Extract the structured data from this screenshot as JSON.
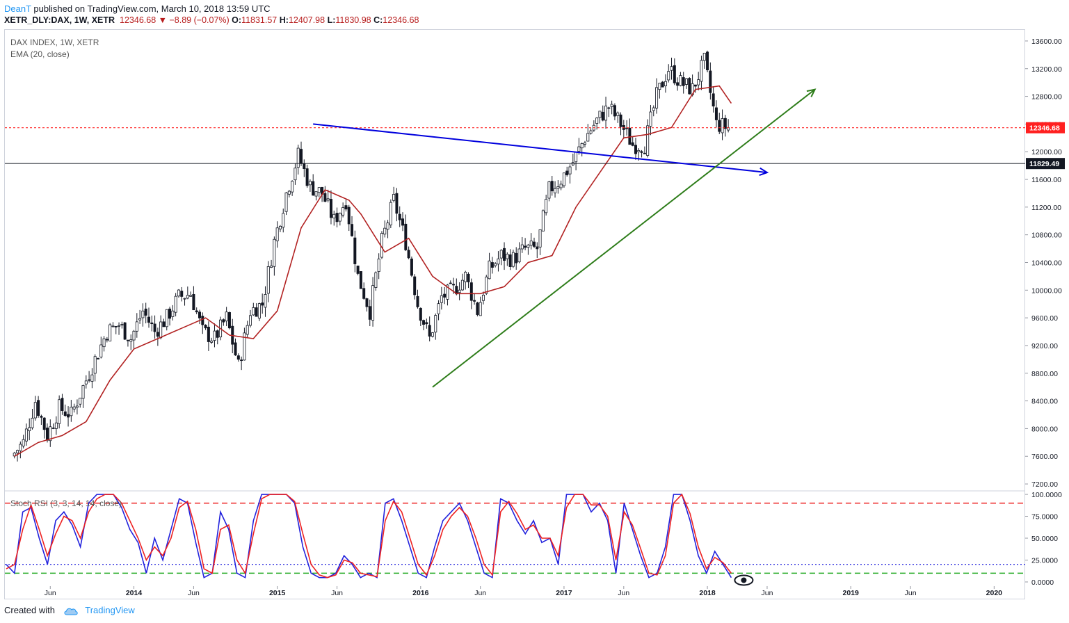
{
  "header": {
    "author": "DeanT",
    "published": "published on TradingView.com, March 10, 2018 13:59 UTC",
    "symbol": "XETR_DLY:DAX, 1W, XETR",
    "last": "12346.68",
    "change": "−8.89 (−0.07%)",
    "o_label": "O:",
    "o_value": "11831.57",
    "h_label": "H:",
    "h_value": "12407.98",
    "l_label": "L:",
    "l_value": "11830.98",
    "c_label": "C:",
    "c_value": "12346.68"
  },
  "legend": {
    "line1": "DAX INDEX, 1W, XETR",
    "line2": "EMA (20, close)",
    "stoch": "Stoch RSI (3, 3, 14, 14, close)"
  },
  "price_tags": {
    "current": "12346.68",
    "support": "11829.49"
  },
  "footer": {
    "created_with": "Created with",
    "brand": "TradingView"
  },
  "colors": {
    "candle": "#131722",
    "ema": "#b22222",
    "blue_line": "#0000dd",
    "green_line": "#2e7d1a",
    "current_price": "#ff2020",
    "stoch_k": "#2222dd",
    "stoch_d": "#ee2222",
    "stoch_upper": "#ee2222",
    "stoch_mid": "#2222dd",
    "stoch_lower": "#22aa22"
  },
  "chart_data": [
    {
      "type": "candlestick",
      "title": "DAX INDEX, 1W, XETR",
      "y_ticks": [
        7200,
        7600,
        8000,
        8400,
        8800,
        9200,
        9600,
        10000,
        10400,
        10800,
        11200,
        11600,
        12000,
        12400,
        12800,
        13200,
        13600
      ],
      "y_tick_labels": [
        "7200.00",
        "7600.00",
        "8000.00",
        "8400.00",
        "8800.00",
        "9200.00",
        "9600.00",
        "10000.00",
        "10400.00",
        "10800.00",
        "11200.00",
        "11600.00",
        "12000.00",
        "12400.00",
        "12800.00",
        "13200.00",
        "13600.00"
      ],
      "ylim": [
        7100,
        13750
      ],
      "x_tick_labels": [
        "Jun",
        "2014",
        "Jun",
        "2015",
        "Jun",
        "2016",
        "Jun",
        "2017",
        "Jun",
        "2018",
        "Jun",
        "2019",
        "Jun",
        "2020"
      ],
      "x_tick_bold": [
        false,
        true,
        false,
        true,
        false,
        true,
        false,
        true,
        false,
        true,
        false,
        true,
        false,
        true
      ],
      "x_range": [
        "2013-03",
        "2020-03"
      ],
      "close_series": [
        {
          "x": "2013-03",
          "y": 7600
        },
        {
          "x": "2013-04",
          "y": 7800
        },
        {
          "x": "2013-05",
          "y": 8400
        },
        {
          "x": "2013-06",
          "y": 7900
        },
        {
          "x": "2013-07",
          "y": 8300
        },
        {
          "x": "2013-08",
          "y": 8200
        },
        {
          "x": "2013-09",
          "y": 8600
        },
        {
          "x": "2013-10",
          "y": 9000
        },
        {
          "x": "2013-11",
          "y": 9400
        },
        {
          "x": "2013-12",
          "y": 9500
        },
        {
          "x": "2014-01",
          "y": 9300
        },
        {
          "x": "2014-02",
          "y": 9700
        },
        {
          "x": "2014-03",
          "y": 9400
        },
        {
          "x": "2014-04",
          "y": 9600
        },
        {
          "x": "2014-05",
          "y": 9900
        },
        {
          "x": "2014-06",
          "y": 9950
        },
        {
          "x": "2014-07",
          "y": 9400
        },
        {
          "x": "2014-08",
          "y": 9300
        },
        {
          "x": "2014-09",
          "y": 9600
        },
        {
          "x": "2014-10",
          "y": 8900
        },
        {
          "x": "2014-11",
          "y": 9700
        },
        {
          "x": "2014-12",
          "y": 9800
        },
        {
          "x": "2015-01",
          "y": 10700
        },
        {
          "x": "2015-02",
          "y": 11400
        },
        {
          "x": "2015-03",
          "y": 11950
        },
        {
          "x": "2015-04",
          "y": 11500
        },
        {
          "x": "2015-05",
          "y": 11400
        },
        {
          "x": "2015-06",
          "y": 11000
        },
        {
          "x": "2015-07",
          "y": 11300
        },
        {
          "x": "2015-08",
          "y": 10200
        },
        {
          "x": "2015-09",
          "y": 9700
        },
        {
          "x": "2015-10",
          "y": 10700
        },
        {
          "x": "2015-11",
          "y": 11300
        },
        {
          "x": "2015-12",
          "y": 10700
        },
        {
          "x": "2016-01",
          "y": 9800
        },
        {
          "x": "2016-02",
          "y": 9300
        },
        {
          "x": "2016-03",
          "y": 9900
        },
        {
          "x": "2016-04",
          "y": 10000
        },
        {
          "x": "2016-05",
          "y": 10200
        },
        {
          "x": "2016-06",
          "y": 9700
        },
        {
          "x": "2016-07",
          "y": 10300
        },
        {
          "x": "2016-08",
          "y": 10500
        },
        {
          "x": "2016-09",
          "y": 10450
        },
        {
          "x": "2016-10",
          "y": 10600
        },
        {
          "x": "2016-11",
          "y": 10600
        },
        {
          "x": "2016-12",
          "y": 11450
        },
        {
          "x": "2017-01",
          "y": 11600
        },
        {
          "x": "2017-02",
          "y": 11850
        },
        {
          "x": "2017-03",
          "y": 12200
        },
        {
          "x": "2017-04",
          "y": 12450
        },
        {
          "x": "2017-05",
          "y": 12650
        },
        {
          "x": "2017-06",
          "y": 12400
        },
        {
          "x": "2017-07",
          "y": 12100
        },
        {
          "x": "2017-08",
          "y": 12100
        },
        {
          "x": "2017-09",
          "y": 12800
        },
        {
          "x": "2017-10",
          "y": 13200
        },
        {
          "x": "2017-11",
          "y": 13000
        },
        {
          "x": "2017-12",
          "y": 12900
        },
        {
          "x": "2018-01",
          "y": 13300
        },
        {
          "x": "2018-02",
          "y": 12400
        },
        {
          "x": "2018-03",
          "y": 12346.68
        }
      ],
      "ema_series": [
        {
          "x": "2013-03",
          "y": 7600
        },
        {
          "x": "2013-05",
          "y": 7800
        },
        {
          "x": "2013-07",
          "y": 7900
        },
        {
          "x": "2013-09",
          "y": 8100
        },
        {
          "x": "2013-11",
          "y": 8700
        },
        {
          "x": "2014-01",
          "y": 9150
        },
        {
          "x": "2014-03",
          "y": 9300
        },
        {
          "x": "2014-05",
          "y": 9450
        },
        {
          "x": "2014-07",
          "y": 9600
        },
        {
          "x": "2014-09",
          "y": 9350
        },
        {
          "x": "2014-11",
          "y": 9300
        },
        {
          "x": "2015-01",
          "y": 9700
        },
        {
          "x": "2015-03",
          "y": 10900
        },
        {
          "x": "2015-05",
          "y": 11450
        },
        {
          "x": "2015-07",
          "y": 11300
        },
        {
          "x": "2015-08",
          "y": 11100
        },
        {
          "x": "2015-10",
          "y": 10550
        },
        {
          "x": "2015-12",
          "y": 10750
        },
        {
          "x": "2016-02",
          "y": 10200
        },
        {
          "x": "2016-04",
          "y": 9950
        },
        {
          "x": "2016-06",
          "y": 9950
        },
        {
          "x": "2016-08",
          "y": 10050
        },
        {
          "x": "2016-10",
          "y": 10400
        },
        {
          "x": "2016-12",
          "y": 10500
        },
        {
          "x": "2017-02",
          "y": 11200
        },
        {
          "x": "2017-04",
          "y": 11700
        },
        {
          "x": "2017-06",
          "y": 12200
        },
        {
          "x": "2017-08",
          "y": 12250
        },
        {
          "x": "2017-10",
          "y": 12350
        },
        {
          "x": "2017-12",
          "y": 12900
        },
        {
          "x": "2018-02",
          "y": 12950
        },
        {
          "x": "2018-03",
          "y": 12700
        }
      ],
      "current_price": 12346.68,
      "support_price": 11829.49,
      "annotations": {
        "blue_resistance_line": {
          "from": {
            "x": "2015-04",
            "y": 12400
          },
          "to": {
            "x": "2018-06",
            "y": 11700
          }
        },
        "green_trend_line": {
          "from": {
            "x": "2016-02",
            "y": 8600
          },
          "to": {
            "x": "2018-10",
            "y": 12900
          }
        }
      }
    },
    {
      "type": "line",
      "title": "Stoch RSI (3, 3, 14, 14, close)",
      "y_ticks": [
        0,
        25,
        50,
        75,
        100
      ],
      "y_tick_labels": [
        "0.0000",
        "25.0000",
        "50.0000",
        "75.0000",
        "100.0000"
      ],
      "ylim": [
        -4,
        104
      ],
      "levels": {
        "upper": 90,
        "middle": 20,
        "lower": 10
      },
      "series": [
        {
          "name": "K",
          "values": [
            20,
            10,
            80,
            85,
            50,
            20,
            70,
            80,
            65,
            40,
            90,
            100,
            100,
            100,
            85,
            60,
            45,
            10,
            50,
            25,
            60,
            95,
            90,
            45,
            5,
            10,
            80,
            60,
            10,
            5,
            70,
            100,
            100,
            100,
            100,
            90,
            40,
            10,
            5,
            5,
            10,
            30,
            20,
            5,
            10,
            5,
            90,
            95,
            70,
            40,
            10,
            5,
            40,
            70,
            80,
            90,
            70,
            40,
            10,
            5,
            95,
            90,
            70,
            55,
            70,
            45,
            50,
            20,
            100,
            100,
            100,
            80,
            90,
            70,
            10,
            90,
            60,
            30,
            5,
            10,
            40,
            100,
            100,
            70,
            30,
            10,
            35,
            20,
            5
          ]
        },
        {
          "name": "D",
          "values": [
            15,
            20,
            60,
            88,
            60,
            30,
            55,
            75,
            70,
            50,
            80,
            95,
            100,
            100,
            90,
            70,
            50,
            25,
            40,
            30,
            50,
            85,
            92,
            60,
            15,
            10,
            60,
            65,
            25,
            10,
            55,
            95,
            100,
            100,
            100,
            92,
            55,
            20,
            8,
            5,
            8,
            25,
            22,
            10,
            8,
            6,
            70,
            92,
            80,
            50,
            20,
            8,
            30,
            60,
            75,
            85,
            75,
            50,
            20,
            8,
            80,
            92,
            78,
            60,
            65,
            50,
            50,
            30,
            85,
            100,
            100,
            88,
            88,
            75,
            25,
            80,
            65,
            38,
            10,
            8,
            30,
            90,
            100,
            78,
            40,
            15,
            28,
            22,
            10
          ]
        }
      ]
    }
  ]
}
